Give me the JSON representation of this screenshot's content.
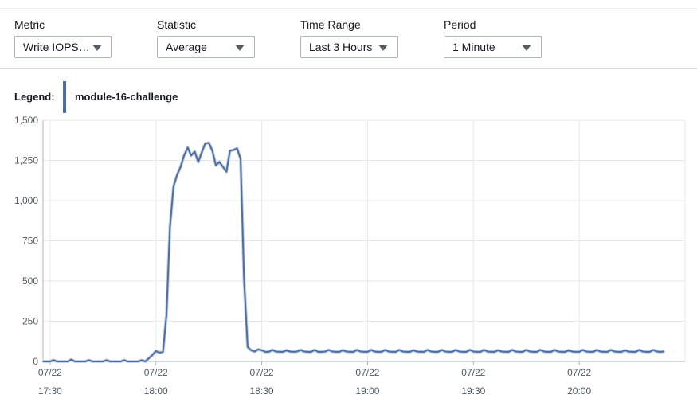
{
  "controls": {
    "metric": {
      "label": "Metric",
      "value": "Write IOPS…"
    },
    "statistic": {
      "label": "Statistic",
      "value": "Average"
    },
    "time_range": {
      "label": "Time Range",
      "value": "Last 3 Hours"
    },
    "period": {
      "label": "Period",
      "value": "1 Minute"
    }
  },
  "legend": {
    "title": "Legend:",
    "entry": "module-16-challenge"
  },
  "colors": {
    "series": "#4a6ea8",
    "series_fill": "#c9d3e3",
    "grid": "#e6e9ec",
    "axis": "#545b64"
  },
  "chart_data": {
    "type": "line",
    "title": "",
    "xlabel": "",
    "ylabel": "",
    "ylim": [
      0,
      1500
    ],
    "xlim": [
      "17:28",
      "20:30"
    ],
    "y_ticks": [
      0,
      250,
      500,
      750,
      1000,
      1250,
      1500
    ],
    "y_tick_labels": [
      "0",
      "250",
      "500",
      "750",
      "1,000",
      "1,250",
      "1,500"
    ],
    "x_ticks": [
      {
        "time": "17:30",
        "date": "07/22",
        "label": "17:30"
      },
      {
        "time": "18:00",
        "date": "07/22",
        "label": "18:00"
      },
      {
        "time": "18:30",
        "date": "07/22",
        "label": "18:30"
      },
      {
        "time": "19:00",
        "date": "07/22",
        "label": "19:00"
      },
      {
        "time": "19:30",
        "date": "07/22",
        "label": "19:30"
      },
      {
        "time": "20:00",
        "date": "07/22",
        "label": "20:00"
      }
    ],
    "grid": true,
    "legend_position": "top-left",
    "series": [
      {
        "name": "module-16-challenge",
        "color": "#4a6ea8",
        "points": [
          [
            "17:28",
            0
          ],
          [
            "17:30",
            0
          ],
          [
            "17:31",
            8
          ],
          [
            "17:32",
            0
          ],
          [
            "17:33",
            0
          ],
          [
            "17:34",
            0
          ],
          [
            "17:35",
            0
          ],
          [
            "17:36",
            12
          ],
          [
            "17:37",
            0
          ],
          [
            "17:38",
            0
          ],
          [
            "17:39",
            0
          ],
          [
            "17:40",
            0
          ],
          [
            "17:41",
            8
          ],
          [
            "17:42",
            0
          ],
          [
            "17:43",
            0
          ],
          [
            "17:44",
            0
          ],
          [
            "17:45",
            0
          ],
          [
            "17:46",
            8
          ],
          [
            "17:47",
            0
          ],
          [
            "17:48",
            0
          ],
          [
            "17:49",
            0
          ],
          [
            "17:50",
            0
          ],
          [
            "17:51",
            8
          ],
          [
            "17:52",
            0
          ],
          [
            "17:53",
            0
          ],
          [
            "17:54",
            0
          ],
          [
            "17:55",
            0
          ],
          [
            "17:56",
            8
          ],
          [
            "17:57",
            0
          ],
          [
            "17:58",
            20
          ],
          [
            "17:59",
            40
          ],
          [
            "18:00",
            65
          ],
          [
            "18:01",
            55
          ],
          [
            "18:02",
            60
          ],
          [
            "18:03",
            290
          ],
          [
            "18:04",
            840
          ],
          [
            "18:05",
            1090
          ],
          [
            "18:06",
            1160
          ],
          [
            "18:07",
            1210
          ],
          [
            "18:08",
            1280
          ],
          [
            "18:09",
            1330
          ],
          [
            "18:10",
            1280
          ],
          [
            "18:11",
            1305
          ],
          [
            "18:12",
            1240
          ],
          [
            "18:13",
            1300
          ],
          [
            "18:14",
            1355
          ],
          [
            "18:15",
            1360
          ],
          [
            "18:16",
            1310
          ],
          [
            "18:17",
            1220
          ],
          [
            "18:18",
            1240
          ],
          [
            "18:19",
            1210
          ],
          [
            "18:20",
            1180
          ],
          [
            "18:21",
            1310
          ],
          [
            "18:22",
            1315
          ],
          [
            "18:23",
            1325
          ],
          [
            "18:24",
            1260
          ],
          [
            "18:25",
            510
          ],
          [
            "18:26",
            90
          ],
          [
            "18:27",
            70
          ],
          [
            "18:28",
            62
          ],
          [
            "18:29",
            75
          ],
          [
            "18:30",
            70
          ],
          [
            "18:31",
            60
          ],
          [
            "18:32",
            60
          ],
          [
            "18:33",
            72
          ],
          [
            "18:34",
            62
          ],
          [
            "18:35",
            60
          ],
          [
            "18:36",
            60
          ],
          [
            "18:37",
            70
          ],
          [
            "18:38",
            62
          ],
          [
            "18:39",
            60
          ],
          [
            "18:40",
            62
          ],
          [
            "18:41",
            72
          ],
          [
            "18:42",
            62
          ],
          [
            "18:43",
            60
          ],
          [
            "18:44",
            60
          ],
          [
            "18:45",
            72
          ],
          [
            "18:46",
            60
          ],
          [
            "18:47",
            60
          ],
          [
            "18:48",
            62
          ],
          [
            "18:49",
            72
          ],
          [
            "18:50",
            62
          ],
          [
            "18:51",
            60
          ],
          [
            "18:52",
            60
          ],
          [
            "18:53",
            70
          ],
          [
            "18:54",
            62
          ],
          [
            "18:55",
            60
          ],
          [
            "18:56",
            60
          ],
          [
            "18:57",
            72
          ],
          [
            "18:58",
            62
          ],
          [
            "18:59",
            60
          ],
          [
            "19:00",
            60
          ],
          [
            "19:01",
            72
          ],
          [
            "19:02",
            62
          ],
          [
            "19:03",
            60
          ],
          [
            "19:04",
            60
          ],
          [
            "19:05",
            72
          ],
          [
            "19:06",
            62
          ],
          [
            "19:07",
            60
          ],
          [
            "19:08",
            60
          ],
          [
            "19:09",
            72
          ],
          [
            "19:10",
            62
          ],
          [
            "19:11",
            60
          ],
          [
            "19:12",
            60
          ],
          [
            "19:13",
            70
          ],
          [
            "19:14",
            62
          ],
          [
            "19:15",
            60
          ],
          [
            "19:16",
            60
          ],
          [
            "19:17",
            72
          ],
          [
            "19:18",
            62
          ],
          [
            "19:19",
            60
          ],
          [
            "19:20",
            60
          ],
          [
            "19:21",
            72
          ],
          [
            "19:22",
            62
          ],
          [
            "19:23",
            60
          ],
          [
            "19:24",
            60
          ],
          [
            "19:25",
            72
          ],
          [
            "19:26",
            62
          ],
          [
            "19:27",
            60
          ],
          [
            "19:28",
            60
          ],
          [
            "19:29",
            72
          ],
          [
            "19:30",
            62
          ],
          [
            "19:31",
            60
          ],
          [
            "19:32",
            60
          ],
          [
            "19:33",
            72
          ],
          [
            "19:34",
            62
          ],
          [
            "19:35",
            60
          ],
          [
            "19:36",
            60
          ],
          [
            "19:37",
            70
          ],
          [
            "19:38",
            62
          ],
          [
            "19:39",
            60
          ],
          [
            "19:40",
            60
          ],
          [
            "19:41",
            72
          ],
          [
            "19:42",
            62
          ],
          [
            "19:43",
            60
          ],
          [
            "19:44",
            60
          ],
          [
            "19:45",
            72
          ],
          [
            "19:46",
            62
          ],
          [
            "19:47",
            60
          ],
          [
            "19:48",
            60
          ],
          [
            "19:49",
            72
          ],
          [
            "19:50",
            62
          ],
          [
            "19:51",
            60
          ],
          [
            "19:52",
            60
          ],
          [
            "19:53",
            72
          ],
          [
            "19:54",
            62
          ],
          [
            "19:55",
            60
          ],
          [
            "19:56",
            60
          ],
          [
            "19:57",
            70
          ],
          [
            "19:58",
            62
          ],
          [
            "19:59",
            60
          ],
          [
            "20:00",
            60
          ],
          [
            "20:01",
            72
          ],
          [
            "20:02",
            62
          ],
          [
            "20:03",
            60
          ],
          [
            "20:04",
            60
          ],
          [
            "20:05",
            72
          ],
          [
            "20:06",
            62
          ],
          [
            "20:07",
            60
          ],
          [
            "20:08",
            60
          ],
          [
            "20:09",
            72
          ],
          [
            "20:10",
            62
          ],
          [
            "20:11",
            60
          ],
          [
            "20:12",
            60
          ],
          [
            "20:13",
            70
          ],
          [
            "20:14",
            62
          ],
          [
            "20:15",
            60
          ],
          [
            "20:16",
            60
          ],
          [
            "20:17",
            72
          ],
          [
            "20:18",
            62
          ],
          [
            "20:19",
            60
          ],
          [
            "20:20",
            60
          ],
          [
            "20:21",
            72
          ],
          [
            "20:22",
            62
          ],
          [
            "20:23",
            60
          ],
          [
            "20:24",
            62
          ]
        ]
      }
    ]
  }
}
